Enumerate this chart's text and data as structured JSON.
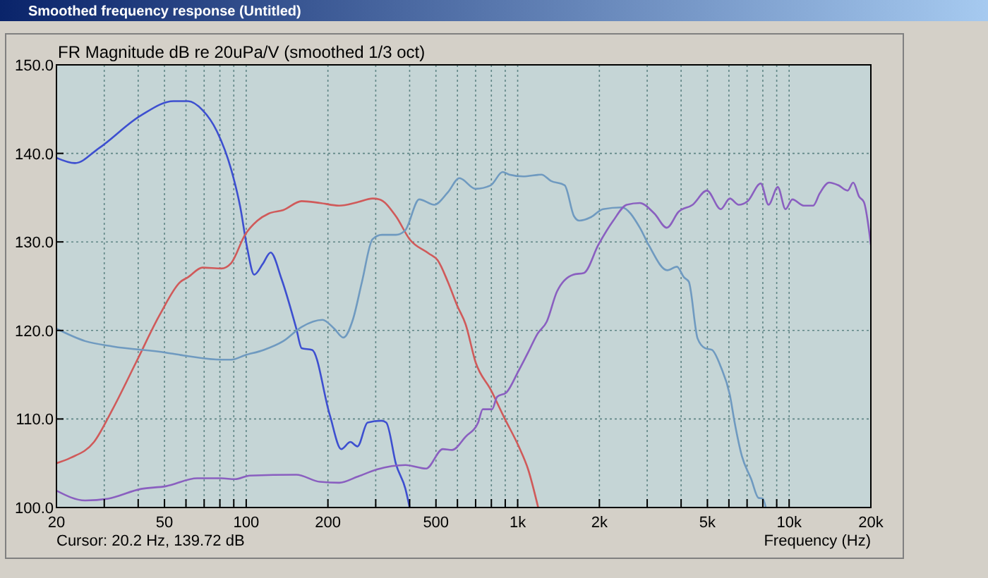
{
  "chart_data": {
    "type": "line",
    "title": "FR Magnitude dB re 20uPa/V (smoothed 1/3 oct)",
    "xlabel": "Frequency (Hz)",
    "annotations": [
      "Smoothed frequency response (Untitled)",
      "Cursor: 20.2 Hz, 139.72 dB"
    ],
    "log": "x",
    "grid": true,
    "xlim": [
      20,
      20000
    ],
    "ylim": [
      100,
      150
    ],
    "xticks": [
      20,
      {
        "value": 30,
        "label": null
      },
      {
        "value": 40,
        "label": null
      },
      50,
      {
        "value": 60,
        "label": null
      },
      {
        "value": 70,
        "label": null
      },
      {
        "value": 80,
        "label": null
      },
      {
        "value": 90,
        "label": null
      },
      100,
      200,
      {
        "value": 300,
        "label": null
      },
      {
        "value": 400,
        "label": null
      },
      500,
      {
        "value": 600,
        "label": null
      },
      {
        "value": 700,
        "label": null
      },
      {
        "value": 800,
        "label": null
      },
      {
        "value": 900,
        "label": null
      },
      {
        "value": 1000,
        "label": "1k"
      },
      {
        "value": 2000,
        "label": "2k"
      },
      {
        "value": 3000,
        "label": null
      },
      {
        "value": 4000,
        "label": null
      },
      {
        "value": 5000,
        "label": "5k"
      },
      {
        "value": 6000,
        "label": null
      },
      {
        "value": 7000,
        "label": null
      },
      {
        "value": 8000,
        "label": null
      },
      {
        "value": 9000,
        "label": null
      },
      {
        "value": 10000,
        "label": "10k"
      },
      {
        "value": 20000,
        "label": "20k"
      }
    ],
    "yticks": [
      {
        "value": 100,
        "label": "100.0"
      },
      {
        "value": 110,
        "label": "110.0"
      },
      {
        "value": 120,
        "label": "120.0"
      },
      {
        "value": 130,
        "label": "130.0"
      },
      {
        "value": 140,
        "label": "140.0"
      },
      {
        "value": 150,
        "label": "150.0"
      }
    ],
    "series": [
      {
        "color": "#3d4fd0",
        "x": [
          20,
          23.4,
          28.7,
          41,
          54,
          61,
          69,
          78,
          88,
          95,
          101,
          107,
          115,
          123,
          135,
          153,
          160,
          175,
          203,
          224,
          242,
          257,
          280,
          315,
          328,
          357,
          386,
          400
        ],
        "values": [
          139.5,
          138.9,
          140.6,
          144.3,
          145.9,
          145.9,
          144.9,
          142.5,
          138.2,
          134.0,
          129.2,
          126.3,
          127.5,
          128.8,
          125.8,
          120.2,
          118.0,
          117.8,
          110.5,
          106.6,
          107.4,
          106.9,
          109.6,
          109.8,
          109.6,
          104.8,
          102.1,
          100
        ]
      },
      {
        "color": "#d05a5a",
        "x": [
          20,
          22.5,
          27.5,
          32.2,
          39.3,
          48.1,
          57.3,
          61,
          69,
          81,
          88,
          99,
          110,
          121,
          137,
          160,
          187,
          220,
          258,
          292,
          310,
          356,
          400,
          470,
          508,
          553,
          599,
          643,
          700,
          796,
          894,
          1009,
          1093,
          1190
        ],
        "values": [
          105.0,
          105.6,
          107.4,
          111.1,
          116.4,
          121.8,
          125.5,
          126.0,
          127.1,
          127.0,
          127.6,
          130.8,
          132.4,
          133.2,
          133.6,
          134.6,
          134.4,
          134.1,
          134.5,
          134.9,
          134.8,
          132.9,
          130.3,
          128.7,
          127.9,
          125.5,
          122.8,
          120.7,
          116.4,
          113.3,
          110.1,
          106.9,
          104.3,
          100
        ]
      },
      {
        "color": "#6f9ac0",
        "x": [
          20,
          25.5,
          32.2,
          50.5,
          61,
          81,
          88,
          99,
          116,
          137,
          160,
          191,
          211,
          228,
          247,
          267,
          292,
          316,
          356,
          385,
          434,
          493,
          553,
          610,
          700,
          796,
          880,
          931,
          1047,
          1223,
          1325,
          1490,
          1613,
          1687,
          1863,
          2061,
          2411,
          2820,
          3044,
          3560,
          3860,
          4100,
          4270,
          4600,
          4900,
          5200,
          5600,
          6050,
          6300,
          6700,
          7250,
          7700,
          8000,
          8200
        ],
        "values": [
          120.2,
          118.8,
          118.2,
          117.5,
          117.1,
          116.7,
          116.7,
          117.2,
          117.8,
          118.8,
          120.4,
          121.2,
          120.2,
          119.2,
          121.2,
          125.5,
          130.3,
          130.8,
          130.8,
          131.3,
          134.8,
          134.2,
          135.6,
          137.2,
          136.0,
          136.4,
          137.9,
          137.6,
          137.4,
          137.6,
          136.9,
          136.4,
          132.9,
          132.4,
          132.8,
          133.7,
          133.9,
          131.6,
          129.6,
          126.8,
          127.2,
          126.0,
          125.5,
          119.1,
          118.0,
          117.8,
          115.9,
          112.7,
          109.6,
          105.8,
          103.2,
          101.1,
          101.0,
          100
        ]
      },
      {
        "color": "#8a5fc0",
        "x": [
          20,
          25.5,
          31,
          41,
          50.5,
          66,
          81,
          91,
          103,
          153,
          187,
          220,
          258,
          303,
          386,
          460,
          530,
          573,
          643,
          715,
          744,
          805,
          840,
          909,
          1006,
          1092,
          1182,
          1280,
          1396,
          1601,
          1755,
          1985,
          2250,
          2521,
          2820,
          3190,
          3542,
          3914,
          4412,
          4977,
          5600,
          6050,
          6522,
          7030,
          7860,
          8400,
          9080,
          9700,
          10280,
          11310,
          12260,
          12970,
          14040,
          15180,
          16420,
          17220,
          18120,
          18860,
          20000
        ],
        "values": [
          101.9,
          100.8,
          101.0,
          102.1,
          102.4,
          103.3,
          103.3,
          103.2,
          103.6,
          103.7,
          102.9,
          102.8,
          103.5,
          104.3,
          104.8,
          104.4,
          106.6,
          106.5,
          108.0,
          109.6,
          111.1,
          111.1,
          112.5,
          113.0,
          115.4,
          117.5,
          119.6,
          121.0,
          124.4,
          126.3,
          126.5,
          129.7,
          132.4,
          134.2,
          134.4,
          133.2,
          131.6,
          133.4,
          134.2,
          135.8,
          133.7,
          134.9,
          134.2,
          134.6,
          136.6,
          134.2,
          136.2,
          133.7,
          134.8,
          134.1,
          134.1,
          135.5,
          136.7,
          136.4,
          135.8,
          136.7,
          135.1,
          134.5,
          129.7
        ]
      }
    ]
  }
}
